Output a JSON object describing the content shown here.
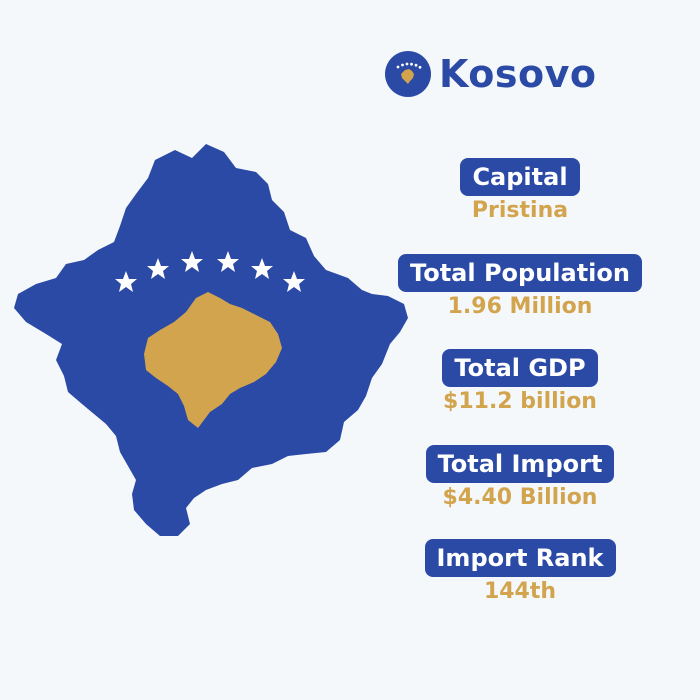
{
  "header": {
    "country": "Kosovo",
    "flag_icon": "kosovo-flag-icon"
  },
  "colors": {
    "primary_blue": "#2a4aa5",
    "gold": "#d2a44d",
    "background": "#f5f8fb",
    "white": "#ffffff"
  },
  "map": {
    "icon": "kosovo-map-icon",
    "star_count": 6
  },
  "facts": [
    {
      "label": "Capital",
      "value": "Pristina"
    },
    {
      "label": "Total Population",
      "value": "1.96 Million"
    },
    {
      "label": "Total GDP",
      "value": "$11.2 billion"
    },
    {
      "label": "Total Import",
      "value": "$4.40 Billion"
    },
    {
      "label": "Import Rank",
      "value": "144th"
    }
  ]
}
